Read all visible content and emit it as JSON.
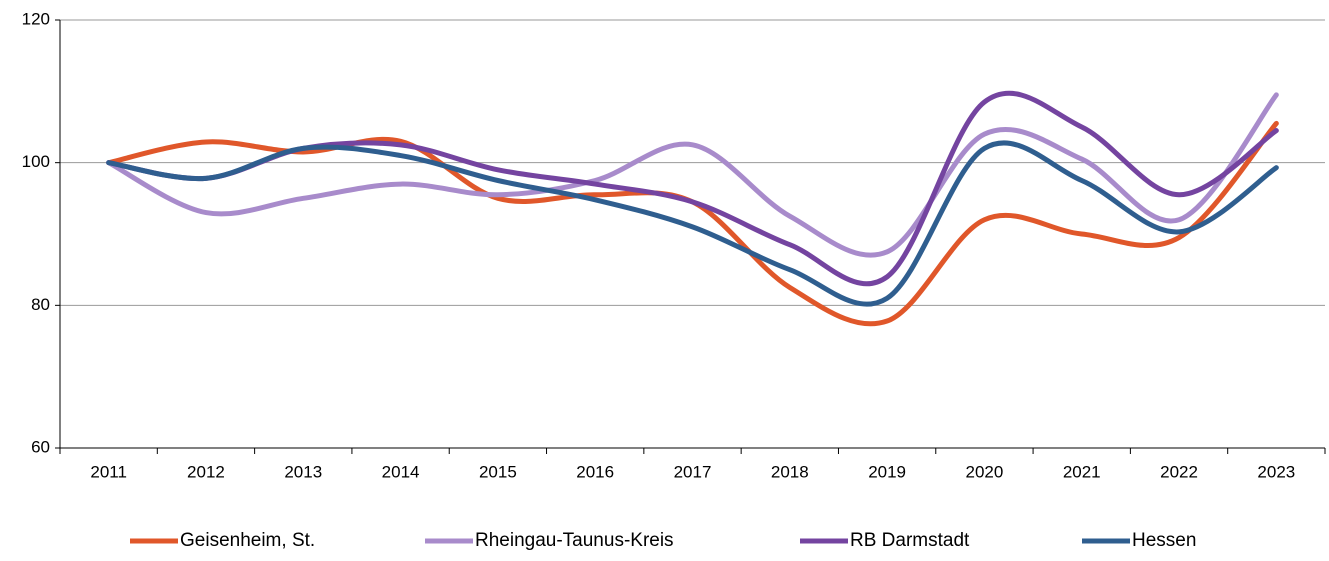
{
  "chart_data": {
    "type": "line",
    "categories": [
      "2011",
      "2012",
      "2013",
      "2014",
      "2015",
      "2016",
      "2017",
      "2018",
      "2019",
      "2020",
      "2021",
      "2022",
      "2023"
    ],
    "series": [
      {
        "name": "Geisenheim, St.",
        "color": "#e0572a",
        "values": [
          100,
          102.9,
          101.5,
          103,
          95,
          95.5,
          94.5,
          82.5,
          77.8,
          92,
          90,
          89.5,
          105.5
        ]
      },
      {
        "name": "Rheingau-Taunus-Kreis",
        "color": "#a88bcb",
        "values": [
          100,
          93,
          95,
          97,
          95.5,
          97.5,
          102.5,
          92.5,
          87.5,
          104,
          100.5,
          92,
          109.5
        ]
      },
      {
        "name": "RB Darmstadt",
        "color": "#7444a0",
        "values": [
          100,
          97.8,
          102,
          102.5,
          99,
          97,
          94.5,
          88.5,
          84,
          108.5,
          105,
          95.5,
          104.5
        ]
      },
      {
        "name": "Hessen",
        "color": "#2f5e8f",
        "values": [
          100,
          97.8,
          102,
          101,
          97.5,
          94.8,
          91,
          85,
          81,
          102,
          97.5,
          90.3,
          99.3
        ]
      }
    ],
    "ylim": [
      60,
      120
    ],
    "yticks": [
      60,
      80,
      100,
      120
    ],
    "grid": true
  }
}
